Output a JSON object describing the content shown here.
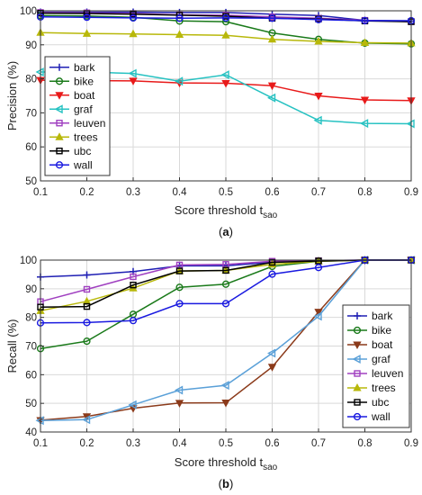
{
  "chart_data": [
    {
      "type": "line",
      "caption": "(a)",
      "caption_letter": "a",
      "xlabel_main": "Score threshold t",
      "xlabel_sub": "sao",
      "ylabel": "Precision (%)",
      "x": [
        0.1,
        0.2,
        0.3,
        0.4,
        0.5,
        0.6,
        0.7,
        0.8,
        0.9
      ],
      "x_ticks": [
        "0.1",
        "0.2",
        "0.3",
        "0.4",
        "0.5",
        "0.6",
        "0.7",
        "0.8",
        "0.9"
      ],
      "xlim": [
        0.1,
        0.9
      ],
      "ylim": [
        50,
        100
      ],
      "y_ticks": [
        "50",
        "60",
        "70",
        "80",
        "90",
        "100"
      ],
      "y_tick_values": [
        50,
        60,
        70,
        80,
        90,
        100
      ],
      "grid": true,
      "legend_position": "bottom-left",
      "series": [
        {
          "name": "bark",
          "color": "#1f1fb4",
          "marker": "plus",
          "values": [
            99.6,
            99.6,
            99.6,
            99.5,
            99.5,
            99.0,
            98.6,
            97.2,
            97.0
          ]
        },
        {
          "name": "bike",
          "color": "#1a7a1a",
          "marker": "circle",
          "values": [
            98.6,
            98.5,
            98.1,
            97.0,
            96.8,
            93.5,
            91.6,
            90.5,
            90.3
          ]
        },
        {
          "name": "boat",
          "color": "#e81a1a",
          "marker": "triangle-down",
          "values": [
            79.6,
            79.5,
            79.4,
            78.8,
            78.7,
            78.0,
            75.0,
            73.8,
            73.6
          ]
        },
        {
          "name": "graf",
          "color": "#26c2c2",
          "marker": "triangle-left",
          "values": [
            82.0,
            82.0,
            81.6,
            79.3,
            81.2,
            74.4,
            67.8,
            66.9,
            66.8
          ]
        },
        {
          "name": "leuven",
          "color": "#a040c0",
          "marker": "square",
          "values": [
            99.5,
            99.4,
            99.2,
            98.8,
            98.7,
            98.2,
            97.8,
            97.2,
            96.8
          ]
        },
        {
          "name": "trees",
          "color": "#b8b80a",
          "marker": "triangle-up",
          "values": [
            93.6,
            93.3,
            93.2,
            93.0,
            92.8,
            91.6,
            91.0,
            90.6,
            90.5
          ]
        },
        {
          "name": "ubc",
          "color": "#000000",
          "marker": "square",
          "values": [
            99.3,
            99.2,
            99.0,
            98.7,
            98.4,
            97.8,
            97.6,
            97.0,
            96.8
          ]
        },
        {
          "name": "wall",
          "color": "#1a1ae0",
          "marker": "circle",
          "values": [
            98.2,
            98.1,
            97.9,
            97.8,
            97.9,
            97.8,
            97.4,
            97.1,
            97.1
          ]
        }
      ]
    },
    {
      "type": "line",
      "caption": "(b)",
      "caption_letter": "b",
      "xlabel_main": "Score threshold t",
      "xlabel_sub": "sao",
      "ylabel": "Recall (%)",
      "x": [
        0.1,
        0.2,
        0.3,
        0.4,
        0.5,
        0.6,
        0.7,
        0.8,
        0.9
      ],
      "x_ticks": [
        "0.1",
        "0.2",
        "0.3",
        "0.4",
        "0.5",
        "0.6",
        "0.7",
        "0.8",
        "0.9"
      ],
      "xlim": [
        0.1,
        0.9
      ],
      "ylim": [
        40,
        100
      ],
      "y_ticks": [
        "40",
        "50",
        "60",
        "70",
        "80",
        "90",
        "100"
      ],
      "y_tick_values": [
        40,
        50,
        60,
        70,
        80,
        90,
        100
      ],
      "grid": true,
      "legend_position": "bottom-right",
      "series": [
        {
          "name": "bark",
          "color": "#1f1fb4",
          "marker": "plus",
          "values": [
            94.1,
            94.8,
            96.0,
            98.0,
            98.0,
            99.3,
            99.8,
            100,
            100
          ]
        },
        {
          "name": "bike",
          "color": "#1a7a1a",
          "marker": "circle",
          "values": [
            69.1,
            71.7,
            81.1,
            90.5,
            91.6,
            97.8,
            99.6,
            100,
            100
          ]
        },
        {
          "name": "boat",
          "color": "#8b3a1a",
          "marker": "triangle-down",
          "values": [
            44.1,
            45.4,
            48.3,
            50.1,
            50.2,
            62.7,
            81.9,
            100,
            100
          ]
        },
        {
          "name": "graf",
          "color": "#5aa0d8",
          "marker": "triangle-left",
          "values": [
            44.0,
            44.3,
            49.5,
            54.6,
            56.3,
            67.5,
            80.4,
            100,
            100
          ]
        },
        {
          "name": "leuven",
          "color": "#a040c0",
          "marker": "square",
          "values": [
            85.5,
            89.8,
            94.2,
            98.3,
            98.5,
            99.6,
            99.8,
            100,
            100
          ]
        },
        {
          "name": "trees",
          "color": "#b8b80a",
          "marker": "triangle-up",
          "values": [
            82.3,
            85.6,
            90.2,
            96.2,
            96.4,
            98.5,
            99.6,
            100,
            100
          ]
        },
        {
          "name": "ubc",
          "color": "#000000",
          "marker": "square",
          "values": [
            83.6,
            83.8,
            91.3,
            96.2,
            96.4,
            99.2,
            99.7,
            100,
            100
          ]
        },
        {
          "name": "wall",
          "color": "#1a1ae0",
          "marker": "circle",
          "values": [
            78.1,
            78.2,
            78.9,
            84.8,
            84.8,
            95.1,
            97.4,
            100,
            100
          ]
        }
      ]
    }
  ]
}
